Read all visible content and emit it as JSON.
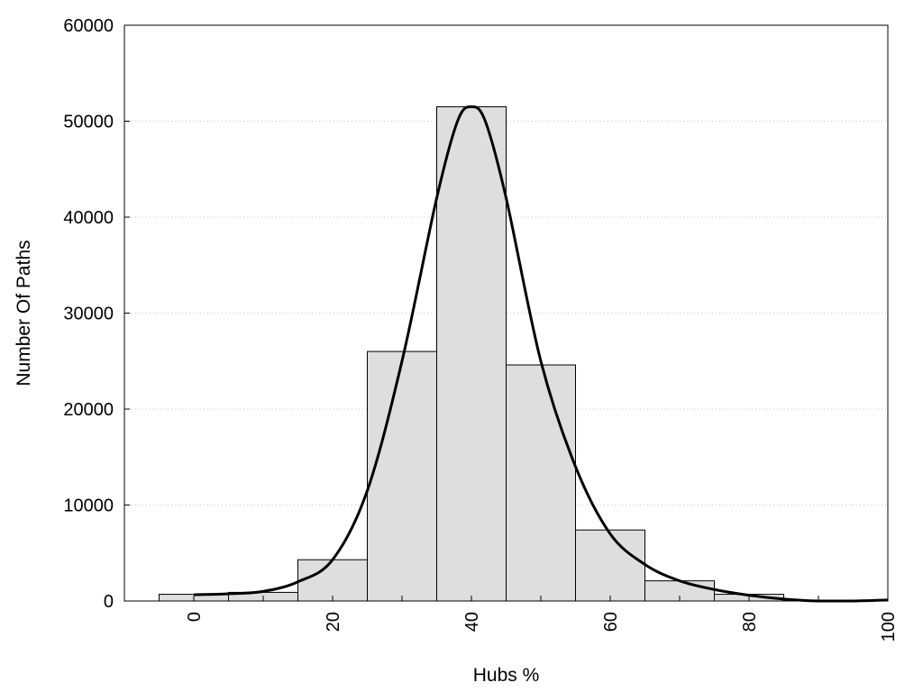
{
  "chart_data": {
    "type": "bar",
    "xlabel": "Hubs %",
    "ylabel": "Number Of Paths",
    "xlim": [
      -10,
      100
    ],
    "ylim": [
      0,
      60000
    ],
    "grid": "horizontal dotted",
    "x_ticks": [
      "0",
      "20",
      "40",
      "60",
      "80",
      "100"
    ],
    "y_ticks": [
      "0",
      "10000",
      "20000",
      "30000",
      "40000",
      "50000",
      "60000"
    ],
    "bin_width": 10,
    "bins": [
      {
        "center": 0,
        "value": 700
      },
      {
        "center": 10,
        "value": 900
      },
      {
        "center": 20,
        "value": 4300
      },
      {
        "center": 30,
        "value": 26000
      },
      {
        "center": 40,
        "value": 51500
      },
      {
        "center": 50,
        "value": 24600
      },
      {
        "center": 60,
        "value": 7400
      },
      {
        "center": 70,
        "value": 2100
      },
      {
        "center": 80,
        "value": 700
      },
      {
        "center": 90,
        "value": 0
      }
    ],
    "density_curve": [
      [
        0,
        650
      ],
      [
        5,
        750
      ],
      [
        10,
        1000
      ],
      [
        15,
        2000
      ],
      [
        20,
        4300
      ],
      [
        25,
        11500
      ],
      [
        30,
        25000
      ],
      [
        35,
        42000
      ],
      [
        38,
        50000
      ],
      [
        40,
        51500
      ],
      [
        42,
        50000
      ],
      [
        45,
        42000
      ],
      [
        50,
        25000
      ],
      [
        55,
        14000
      ],
      [
        60,
        7000
      ],
      [
        65,
        3800
      ],
      [
        70,
        2100
      ],
      [
        75,
        1200
      ],
      [
        80,
        600
      ],
      [
        85,
        200
      ],
      [
        90,
        0
      ],
      [
        95,
        0
      ],
      [
        100,
        100
      ]
    ],
    "colors": {
      "bar_fill": "#dedede",
      "bar_stroke": "#000000",
      "curve": "#000000",
      "grid": "#c8c8c8"
    }
  }
}
